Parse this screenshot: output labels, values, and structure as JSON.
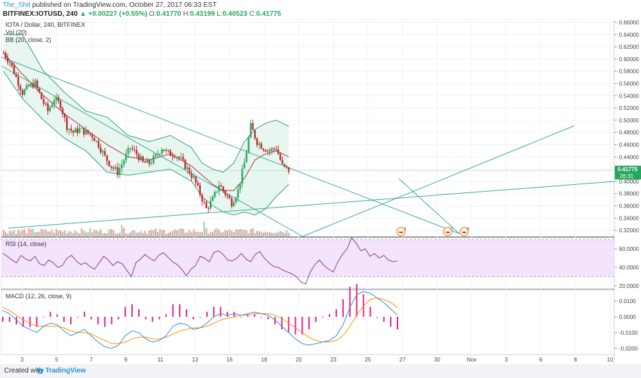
{
  "header": {
    "user": "The_Shit",
    "published": "published on TradingView.com, October 27, 2017 06:33 EST",
    "symbol_line": "BITFINEX:IOTUSD, 240",
    "change": "▲ +0.00227 (+0.55%)",
    "o_label": "O:",
    "o": "0.41770",
    "h_label": "H:",
    "h": "0.43199",
    "l_label": "L:",
    "l": "0.40523",
    "c_label": "C:",
    "c": "0.41775"
  },
  "legends": {
    "main": "IOTA / Dollar, 240, BITFINEX",
    "vol": "Vol (20)",
    "bb": "BB (20, close, 2)",
    "rsi": "RSI (14, close)",
    "macd": "MACD (12, 26, close, 9)"
  },
  "price_tag": {
    "value": "0.41775",
    "countdown": "26:31"
  },
  "badges": {
    "b1": "3",
    "b2": "2",
    "b3": "8"
  },
  "footer": {
    "created": "Created with",
    "brand": "TradingView"
  },
  "colors": {
    "up": "#26a65b",
    "down": "#c1272d",
    "bb_band": "#2e9e7a",
    "bb_basis": "#a3333d",
    "bb_fill": "#e8f6f1",
    "rsi": "#8e3d8e",
    "rsi_fill": "#f3e3fb",
    "macd": "#2a8fd8",
    "signal": "#ff8f00",
    "hist": "#e91e8c",
    "trend": "#3aa99a"
  },
  "chart_data": [
    {
      "type": "candlestick",
      "title": "IOTA / Dollar, 240, BITFINEX",
      "ylim": [
        0.31,
        0.665
      ],
      "y_ticks": [
        "0.66000",
        "0.64000",
        "0.62000",
        "0.60000",
        "0.58000",
        "0.56000",
        "0.54000",
        "0.52000",
        "0.50000",
        "0.48000",
        "0.46000",
        "0.44000",
        "0.42000",
        "0.40000",
        "0.38000",
        "0.36000",
        "0.34000",
        "0.32000"
      ],
      "x_ticks": [
        "3",
        "5",
        "7",
        "9",
        "11",
        "13",
        "16",
        "18",
        "20",
        "23",
        "25",
        "27",
        "30",
        "Nov",
        "3",
        "6",
        "8",
        "10"
      ],
      "close_path": [
        [
          1,
          0.61
        ],
        [
          4,
          0.595
        ],
        [
          7,
          0.57
        ],
        [
          10,
          0.545
        ],
        [
          13,
          0.555
        ],
        [
          16,
          0.56
        ],
        [
          19,
          0.535
        ],
        [
          22,
          0.515
        ],
        [
          25,
          0.535
        ],
        [
          28,
          0.525
        ],
        [
          31,
          0.49
        ],
        [
          34,
          0.48
        ],
        [
          37,
          0.485
        ],
        [
          40,
          0.48
        ],
        [
          43,
          0.475
        ],
        [
          46,
          0.46
        ],
        [
          49,
          0.44
        ],
        [
          52,
          0.425
        ],
        [
          55,
          0.415
        ],
        [
          58,
          0.435
        ],
        [
          61,
          0.455
        ],
        [
          64,
          0.445
        ],
        [
          67,
          0.43
        ],
        [
          70,
          0.43
        ],
        [
          73,
          0.44
        ],
        [
          76,
          0.455
        ],
        [
          79,
          0.445
        ],
        [
          82,
          0.445
        ],
        [
          85,
          0.435
        ],
        [
          88,
          0.42
        ],
        [
          91,
          0.405
        ],
        [
          94,
          0.38
        ],
        [
          97,
          0.355
        ],
        [
          100,
          0.37
        ],
        [
          103,
          0.395
        ],
        [
          106,
          0.38
        ],
        [
          109,
          0.365
        ],
        [
          112,
          0.385
        ],
        [
          115,
          0.43
        ],
        [
          118,
          0.49
        ],
        [
          121,
          0.465
        ],
        [
          124,
          0.455
        ],
        [
          127,
          0.45
        ],
        [
          130,
          0.455
        ],
        [
          133,
          0.425
        ],
        [
          136,
          0.418
        ]
      ],
      "bb_upper": [
        [
          1,
          0.64
        ],
        [
          10,
          0.64
        ],
        [
          20,
          0.58
        ],
        [
          30,
          0.545
        ],
        [
          40,
          0.515
        ],
        [
          50,
          0.505
        ],
        [
          60,
          0.475
        ],
        [
          70,
          0.465
        ],
        [
          80,
          0.475
        ],
        [
          90,
          0.455
        ],
        [
          95,
          0.43
        ],
        [
          100,
          0.42
        ],
        [
          105,
          0.415
        ],
        [
          110,
          0.43
        ],
        [
          115,
          0.465
        ],
        [
          120,
          0.485
        ],
        [
          125,
          0.495
        ],
        [
          130,
          0.5
        ],
        [
          136,
          0.49
        ]
      ],
      "bb_basis": [
        [
          1,
          0.61
        ],
        [
          10,
          0.575
        ],
        [
          20,
          0.54
        ],
        [
          30,
          0.51
        ],
        [
          40,
          0.485
        ],
        [
          50,
          0.46
        ],
        [
          60,
          0.44
        ],
        [
          70,
          0.435
        ],
        [
          80,
          0.445
        ],
        [
          90,
          0.425
        ],
        [
          95,
          0.41
        ],
        [
          100,
          0.395
        ],
        [
          105,
          0.385
        ],
        [
          110,
          0.385
        ],
        [
          115,
          0.405
        ],
        [
          120,
          0.435
        ],
        [
          125,
          0.445
        ],
        [
          130,
          0.45
        ],
        [
          136,
          0.44
        ]
      ],
      "bb_lower": [
        [
          1,
          0.58
        ],
        [
          10,
          0.535
        ],
        [
          20,
          0.5
        ],
        [
          30,
          0.47
        ],
        [
          40,
          0.45
        ],
        [
          50,
          0.415
        ],
        [
          60,
          0.41
        ],
        [
          70,
          0.415
        ],
        [
          80,
          0.42
        ],
        [
          90,
          0.4
        ],
        [
          95,
          0.375
        ],
        [
          100,
          0.36
        ],
        [
          105,
          0.35
        ],
        [
          110,
          0.345
        ],
        [
          115,
          0.35
        ],
        [
          120,
          0.345
        ],
        [
          125,
          0.355
        ],
        [
          130,
          0.375
        ],
        [
          136,
          0.395
        ]
      ]
    },
    {
      "type": "line",
      "name": "RSI (14, close)",
      "ylim": [
        17,
        72
      ],
      "y_ticks": [
        "60.0000",
        "40.0000",
        "20.0000"
      ],
      "values": [
        55,
        52,
        48,
        45,
        53,
        49,
        47,
        52,
        44,
        42,
        48,
        45,
        40,
        42,
        50,
        53,
        47,
        43,
        45,
        41,
        38,
        45,
        52,
        48,
        42,
        46,
        44,
        37,
        30,
        45,
        49,
        54,
        50,
        47,
        53,
        56,
        51,
        46,
        43,
        38,
        31,
        38,
        42,
        52,
        50,
        46,
        56,
        58,
        54,
        48,
        47,
        50,
        55,
        49,
        46,
        54,
        57,
        50,
        45,
        41,
        40,
        37,
        35,
        33,
        30,
        24,
        22,
        35,
        43,
        48,
        42,
        38,
        35,
        46,
        54,
        60,
        72,
        66,
        58,
        60,
        52,
        55,
        50,
        53,
        48,
        46,
        47
      ],
      "overbought": 70,
      "oversold": 30
    },
    {
      "type": "line",
      "name": "MACD (12, 26, close, 9)",
      "ylim": [
        -0.024,
        0.017
      ],
      "y_ticks": [
        "0.0100",
        "0.0000",
        "-0.0100",
        "-0.0200"
      ],
      "macd": [
        0.004,
        0.002,
        -0.002,
        -0.006,
        -0.008,
        -0.01,
        -0.006,
        -0.004,
        -0.005,
        -0.009,
        -0.012,
        -0.01,
        -0.008,
        -0.012,
        -0.016,
        -0.019,
        -0.02,
        -0.018,
        -0.012,
        -0.009,
        -0.01,
        -0.014,
        -0.016,
        -0.015,
        -0.012,
        -0.006,
        -0.004,
        -0.005,
        -0.008,
        -0.007,
        -0.004,
        0,
        0.002,
        0.001,
        0.002,
        0.001,
        0.002,
        0.003,
        0.002,
        0.001,
        -0.002,
        -0.006,
        -0.01,
        -0.014,
        -0.017,
        -0.018,
        -0.017,
        -0.016,
        -0.015,
        -0.012,
        -0.005,
        0.006,
        0.014,
        0.016,
        0.015,
        0.012,
        0.009,
        0.005,
        0.001
      ],
      "signal": [
        0.006,
        0.004,
        0.001,
        -0.002,
        -0.004,
        -0.006,
        -0.006,
        -0.006,
        -0.006,
        -0.007,
        -0.009,
        -0.01,
        -0.01,
        -0.011,
        -0.013,
        -0.015,
        -0.017,
        -0.017,
        -0.016,
        -0.014,
        -0.013,
        -0.013,
        -0.014,
        -0.014,
        -0.013,
        -0.011,
        -0.009,
        -0.008,
        -0.007,
        -0.007,
        -0.006,
        -0.004,
        -0.002,
        -0.001,
        0,
        0.001,
        0.001,
        0.002,
        0.002,
        0.002,
        0.001,
        -0.001,
        -0.004,
        -0.007,
        -0.01,
        -0.013,
        -0.015,
        -0.016,
        -0.016,
        -0.015,
        -0.012,
        -0.006,
        0.001,
        0.007,
        0.011,
        0.012,
        0.011,
        0.009,
        0.006
      ]
    }
  ]
}
